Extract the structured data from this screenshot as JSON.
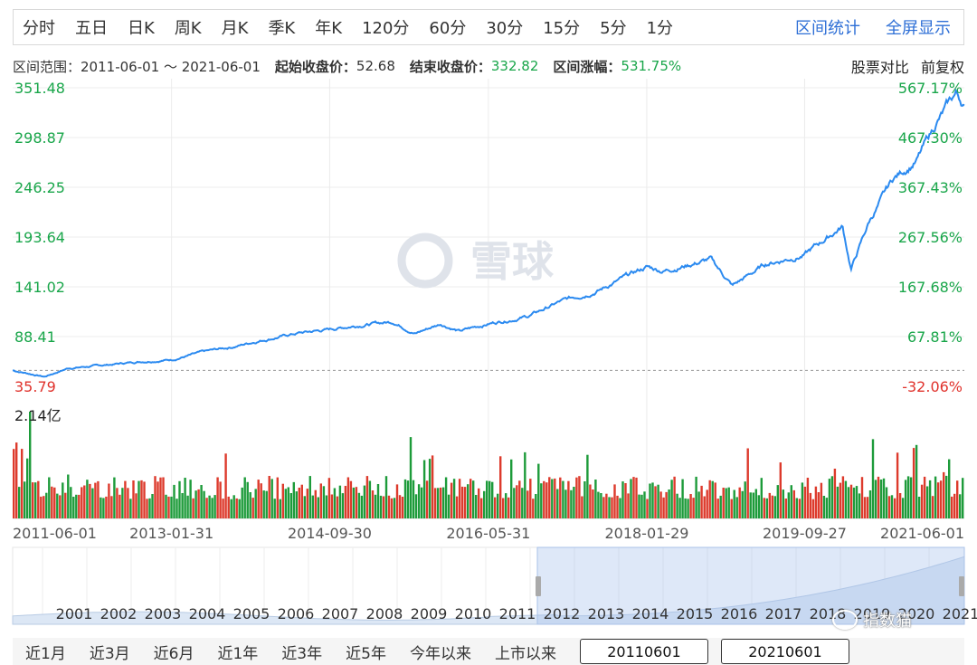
{
  "periods": [
    "分时",
    "五日",
    "日K",
    "周K",
    "月K",
    "季K",
    "年K",
    "120分",
    "60分",
    "30分",
    "15分",
    "5分",
    "1分"
  ],
  "toplinks": {
    "stats": "区间统计",
    "fullscreen": "全屏显示"
  },
  "info": {
    "range_label": "区间范围：",
    "range_value": "2011-06-01 ～ 2021-06-01",
    "start_label": "起始收盘价：",
    "start_value": "52.68",
    "end_label": "结束收盘价：",
    "end_value": "332.82",
    "change_label": "区间涨幅：",
    "change_value": "531.75%",
    "compare": "股票对比",
    "adjust": "前复权"
  },
  "watermark_logo": "雪球",
  "colors": {
    "line": "#2b8af0",
    "up": "#dd3a2c",
    "down": "#1d9b3a",
    "green_text": "#19a64a",
    "red_text": "#e0322c",
    "link": "#2e6fd6"
  },
  "navigator": {
    "years": [
      "2001",
      "2002",
      "2003",
      "2004",
      "2005",
      "2006",
      "2007",
      "2008",
      "2009",
      "2010",
      "2011",
      "2012",
      "2013",
      "2014",
      "2015",
      "2016",
      "2017",
      "2018",
      "2019",
      "2020",
      "2021"
    ]
  },
  "bottom": {
    "ranges": [
      "近1月",
      "近3月",
      "近6月",
      "近1年",
      "近3年",
      "近5年",
      "今年以来",
      "上市以来"
    ],
    "start_date": "20110601",
    "end_date": "20210601"
  },
  "watermark_text": "指数猫",
  "chart_data": {
    "type": "line",
    "title": "",
    "x_ticks": [
      "2011-06-01",
      "2013-01-31",
      "2014-09-30",
      "2016-05-31",
      "2018-01-29",
      "2019-09-27",
      "2021-06-01"
    ],
    "y_ticks_left": [
      "351.48",
      "298.87",
      "246.25",
      "193.64",
      "141.02",
      "88.41",
      "35.79"
    ],
    "y_ticks_right": [
      "567.17%",
      "467.30%",
      "367.43%",
      "267.56%",
      "167.68%",
      "67.81%",
      "-32.06%"
    ],
    "ylim": [
      35.79,
      351.48
    ],
    "reference_line": 52.68,
    "volume_max_label": "2.14亿",
    "series": [
      {
        "x": [
          "2011-06-01",
          "2011-10-01",
          "2012-01-01",
          "2012-06-01",
          "2012-10-01",
          "2013-01-31",
          "2013-06-01",
          "2013-10-01",
          "2014-01-01",
          "2014-06-01",
          "2014-09-30",
          "2015-02-01",
          "2015-06-01",
          "2015-08-25",
          "2015-12-01",
          "2016-02-11",
          "2016-05-31",
          "2016-11-01",
          "2017-03-01",
          "2017-08-01",
          "2018-01-29",
          "2018-04-01",
          "2018-10-01",
          "2018-12-24",
          "2019-05-01",
          "2019-09-27",
          "2020-02-19",
          "2020-03-23",
          "2020-06-01",
          "2020-09-01",
          "2020-12-01",
          "2021-02-15",
          "2021-04-30",
          "2021-06-01"
        ],
        "values": [
          52.68,
          46.0,
          55.0,
          58.5,
          62.0,
          64.0,
          72.0,
          78.0,
          84.0,
          92.0,
          96.0,
          101.0,
          104.0,
          92.0,
          102.0,
          94.0,
          102.0,
          110.0,
          125.0,
          138.0,
          162.0,
          158.0,
          170.0,
          142.0,
          165.0,
          175.0,
          205.0,
          160.0,
          210.0,
          255.0,
          275.0,
          315.0,
          345.0,
          332.82
        ]
      }
    ],
    "volume_range": [
      0,
      2.14
    ]
  }
}
